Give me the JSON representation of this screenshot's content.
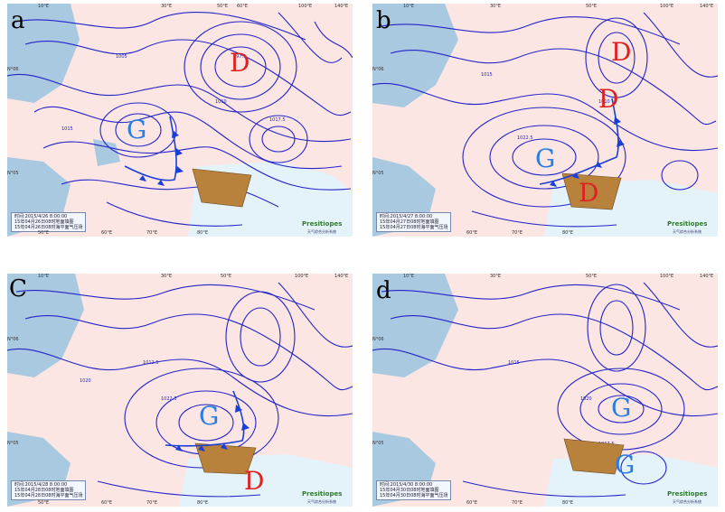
{
  "panels": [
    {
      "label": "a",
      "time": "时间:2015/4/26 8:00:00",
      "legend": [
        "15年04月26日08时地面填图",
        "15年04月26日08时海平面气压场"
      ],
      "brand": "Presitiopes",
      "brand_sub": "天气综合分析系统",
      "systems": [
        {
          "letter": "G",
          "color": "#2a7de1"
        },
        {
          "letter": "D",
          "color": "#e02020"
        }
      ],
      "lon_ticks": [
        "10°E",
        "20°E",
        "30°E",
        "40°E",
        "50°E",
        "60°E",
        "70°E",
        "80°E",
        "90°E",
        "100°E",
        "110°E",
        "120°E",
        "130°E",
        "140°E"
      ],
      "lon_ticks_bottom": [
        "50°E",
        "60°E",
        "70°E",
        "80°E",
        "90°E"
      ],
      "lat_ticks": [
        "N°06",
        "N°05"
      ]
    },
    {
      "label": "b",
      "time": "时间:2015/4/27 8:00:00",
      "legend": [
        "15年04月27日08时地面填图",
        "15年04月27日08时海平面气压场"
      ],
      "brand": "Presitiopes",
      "brand_sub": "天气综合分析系统",
      "systems": [
        {
          "letter": "D",
          "color": "#e02020"
        },
        {
          "letter": "D",
          "color": "#e02020"
        },
        {
          "letter": "G",
          "color": "#2a7de1"
        },
        {
          "letter": "D",
          "color": "#e02020"
        }
      ],
      "lon_ticks": [
        "10°E",
        "20°E",
        "30°E",
        "40°E",
        "50°E",
        "60°E",
        "70°E",
        "80°E",
        "90°E",
        "100°E",
        "110°E",
        "120°E",
        "130°E",
        "140°E"
      ],
      "lon_ticks_bottom": [
        "50°E",
        "60°E",
        "70°E",
        "80°E",
        "90°E"
      ],
      "lat_ticks": [
        "N°06",
        "N°05"
      ]
    },
    {
      "label": "C",
      "time": "时间:2015/4/28 8:00:00",
      "legend": [
        "15年04月28日08时地面填图",
        "15年04月28日08时海平面气压场"
      ],
      "brand": "Presitiopes",
      "brand_sub": "天气综合分析系统",
      "systems": [
        {
          "letter": "G",
          "color": "#2a7de1"
        },
        {
          "letter": "D",
          "color": "#e02020"
        }
      ],
      "lon_ticks": [
        "10°E",
        "20°E",
        "30°E",
        "40°E",
        "50°E",
        "60°E",
        "70°E",
        "80°E",
        "90°E",
        "100°E",
        "110°E",
        "120°E",
        "130°E",
        "140°E"
      ],
      "lon_ticks_bottom": [
        "50°E",
        "60°E",
        "70°E",
        "80°E",
        "90°E"
      ],
      "lat_ticks": [
        "N°06",
        "N°05"
      ]
    },
    {
      "label": "d",
      "time": "时间:2015/4/30 8:00:00",
      "legend": [
        "15年04月30日08时地面填图",
        "15年04月30日08时海平面气压场"
      ],
      "brand": "Presitiopes",
      "brand_sub": "天气综合分析系统",
      "systems": [
        {
          "letter": "G",
          "color": "#2a7de1"
        },
        {
          "letter": "G",
          "color": "#2a7de1"
        }
      ],
      "lon_ticks": [
        "10°E",
        "20°E",
        "30°E",
        "40°E",
        "50°E",
        "60°E",
        "70°E",
        "80°E",
        "90°E",
        "100°E",
        "110°E",
        "120°E",
        "130°E",
        "140°E"
      ],
      "lon_ticks_bottom": [
        "50°E",
        "60°E",
        "70°E",
        "80°E",
        "90°E"
      ],
      "lat_ticks": [
        "N°06",
        "N°05"
      ]
    }
  ],
  "isobar_labels": [
    "1005",
    "1010",
    "1015",
    "1017.5",
    "1020",
    "1012.5",
    "1007.5",
    "1002.5",
    "1000",
    "997.5",
    "1022.5",
    "1025"
  ],
  "colors": {
    "land": "#fbe6e4",
    "sea": "#a9c9e0",
    "isobar": "#2424c8",
    "front": "#1a3fd6",
    "region": "#b8823c",
    "low": "#e02020",
    "high": "#2a7de1",
    "lowland": "#e4f2fa"
  }
}
